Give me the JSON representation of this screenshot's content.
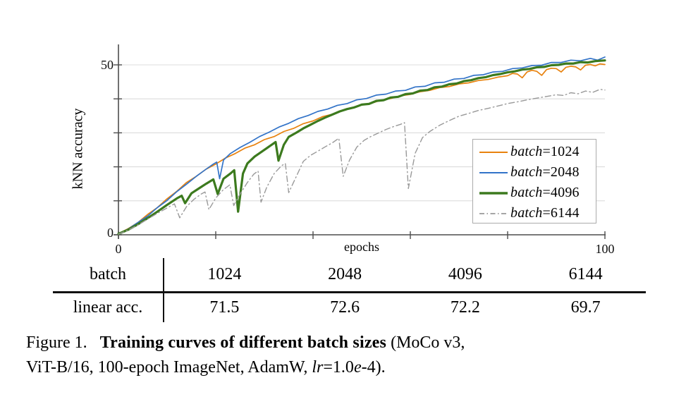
{
  "axis_labels": {
    "y50": "50",
    "y0": "0",
    "x0": "0",
    "x100": "100"
  },
  "chart_data": {
    "type": "line",
    "title": "",
    "xlabel": "epochs",
    "ylabel": "kNN accuracy",
    "xlim": [
      0,
      100
    ],
    "ylim": [
      0,
      55
    ],
    "x_ticks": [
      0,
      20,
      40,
      60,
      80,
      100
    ],
    "x_tick_labels_shown": [
      "0",
      "100"
    ],
    "y_ticks": [
      0,
      10,
      20,
      30,
      40,
      50
    ],
    "y_tick_labels_shown": [
      "0",
      "50"
    ],
    "grid": "horizontal",
    "legend_position": "right-center",
    "colors": {
      "grid": "#dcdcdc",
      "axis": "#4d4d4d"
    },
    "series": [
      {
        "name": "batch=1024",
        "legend_var": "batch",
        "legend_eq": "=",
        "legend_num": "1024",
        "color": "#e8820e",
        "style": "solid",
        "width": 1.7,
        "points": [
          [
            0,
            0.3
          ],
          [
            2,
            1.8
          ],
          [
            4,
            3.6
          ],
          [
            6,
            6.0
          ],
          [
            8,
            8.0
          ],
          [
            10,
            10.6
          ],
          [
            12,
            12.8
          ],
          [
            14,
            15.4
          ],
          [
            16,
            17.2
          ],
          [
            18,
            19.3
          ],
          [
            20,
            20.8
          ],
          [
            22,
            22.6
          ],
          [
            24,
            23.9
          ],
          [
            26,
            25.5
          ],
          [
            28,
            26.5
          ],
          [
            30,
            28.0
          ],
          [
            32,
            28.9
          ],
          [
            34,
            30.4
          ],
          [
            36,
            31.3
          ],
          [
            38,
            32.7
          ],
          [
            40,
            33.5
          ],
          [
            42,
            34.8
          ],
          [
            44,
            35.5
          ],
          [
            46,
            36.6
          ],
          [
            48,
            37.2
          ],
          [
            50,
            38.2
          ],
          [
            52,
            38.7
          ],
          [
            54,
            39.6
          ],
          [
            56,
            40.1
          ],
          [
            58,
            40.9
          ],
          [
            60,
            41.3
          ],
          [
            62,
            42.1
          ],
          [
            64,
            42.5
          ],
          [
            66,
            43.3
          ],
          [
            68,
            43.6
          ],
          [
            70,
            44.4
          ],
          [
            72,
            44.7
          ],
          [
            74,
            45.4
          ],
          [
            76,
            45.7
          ],
          [
            78,
            46.4
          ],
          [
            80,
            46.8
          ],
          [
            81,
            47.5
          ],
          [
            82,
            47.3
          ],
          [
            83,
            46.2
          ],
          [
            84,
            47.9
          ],
          [
            85,
            48.4
          ],
          [
            86,
            48.1
          ],
          [
            87,
            46.9
          ],
          [
            88,
            48.6
          ],
          [
            89,
            49.0
          ],
          [
            90,
            48.9
          ],
          [
            91,
            47.9
          ],
          [
            92,
            49.3
          ],
          [
            93,
            49.6
          ],
          [
            94,
            49.4
          ],
          [
            95,
            48.5
          ],
          [
            96,
            49.9
          ],
          [
            97,
            50.1
          ],
          [
            98,
            49.7
          ],
          [
            99,
            50.3
          ],
          [
            100,
            50.1
          ]
        ]
      },
      {
        "name": "batch=2048",
        "legend_var": "batch",
        "legend_eq": "=",
        "legend_num": "2048",
        "color": "#3273c8",
        "style": "solid",
        "width": 1.7,
        "points": [
          [
            0,
            0.3
          ],
          [
            2,
            1.7
          ],
          [
            4,
            3.6
          ],
          [
            6,
            5.5
          ],
          [
            8,
            8.0
          ],
          [
            10,
            10.1
          ],
          [
            12,
            12.7
          ],
          [
            14,
            14.9
          ],
          [
            16,
            17.2
          ],
          [
            18,
            19.3
          ],
          [
            19.5,
            20.8
          ],
          [
            20.2,
            21.4
          ],
          [
            20.8,
            16.5
          ],
          [
            21.6,
            22.0
          ],
          [
            23,
            23.9
          ],
          [
            25,
            25.7
          ],
          [
            27,
            27.2
          ],
          [
            29,
            28.9
          ],
          [
            31,
            30.2
          ],
          [
            33,
            31.7
          ],
          [
            35,
            32.8
          ],
          [
            37,
            34.2
          ],
          [
            39,
            35.1
          ],
          [
            41,
            36.3
          ],
          [
            43,
            37.0
          ],
          [
            45,
            38.1
          ],
          [
            47,
            38.6
          ],
          [
            49,
            39.7
          ],
          [
            51,
            40.1
          ],
          [
            53,
            41.1
          ],
          [
            55,
            41.4
          ],
          [
            57,
            42.3
          ],
          [
            59,
            42.5
          ],
          [
            61,
            43.5
          ],
          [
            63,
            43.7
          ],
          [
            65,
            44.7
          ],
          [
            67,
            44.9
          ],
          [
            69,
            45.8
          ],
          [
            71,
            46.0
          ],
          [
            73,
            46.9
          ],
          [
            75,
            47.1
          ],
          [
            77,
            47.9
          ],
          [
            79,
            48.1
          ],
          [
            81,
            48.9
          ],
          [
            83,
            49.1
          ],
          [
            85,
            49.8
          ],
          [
            87,
            49.9
          ],
          [
            89,
            50.7
          ],
          [
            91,
            50.7
          ],
          [
            93,
            51.4
          ],
          [
            95,
            51.2
          ],
          [
            97,
            51.9
          ],
          [
            98.5,
            51.4
          ],
          [
            100,
            52.3
          ]
        ]
      },
      {
        "name": "batch=4096",
        "legend_var": "batch",
        "legend_eq": "=",
        "legend_num": "4096",
        "color": "#3c7a1e",
        "style": "solid",
        "width": 3.2,
        "points": [
          [
            0,
            0.3
          ],
          [
            2,
            1.5
          ],
          [
            4,
            3.1
          ],
          [
            6,
            4.9
          ],
          [
            8,
            6.8
          ],
          [
            10,
            8.8
          ],
          [
            12,
            10.7
          ],
          [
            13,
            11.5
          ],
          [
            13.7,
            9.3
          ],
          [
            15,
            12.2
          ],
          [
            16.5,
            13.6
          ],
          [
            18,
            15.0
          ],
          [
            19.5,
            16.3
          ],
          [
            20.4,
            12.0
          ],
          [
            21.6,
            16.5
          ],
          [
            23,
            18.0
          ],
          [
            23.8,
            19.0
          ],
          [
            24.6,
            6.8
          ],
          [
            25.6,
            18.0
          ],
          [
            26.5,
            21.0
          ],
          [
            28,
            23.0
          ],
          [
            29.5,
            24.5
          ],
          [
            31,
            26.0
          ],
          [
            32.3,
            27.3
          ],
          [
            32.9,
            21.8
          ],
          [
            34,
            26.5
          ],
          [
            35,
            28.8
          ],
          [
            36.5,
            30.0
          ],
          [
            38,
            31.3
          ],
          [
            39.5,
            32.4
          ],
          [
            41,
            33.5
          ],
          [
            42.5,
            34.5
          ],
          [
            44,
            35.4
          ],
          [
            45.5,
            36.3
          ],
          [
            47,
            37.0
          ],
          [
            48.5,
            37.5
          ],
          [
            50,
            38.3
          ],
          [
            51.5,
            38.5
          ],
          [
            53,
            39.4
          ],
          [
            54.5,
            39.6
          ],
          [
            56,
            40.4
          ],
          [
            57.5,
            40.6
          ],
          [
            59,
            41.4
          ],
          [
            60.5,
            41.6
          ],
          [
            62,
            42.4
          ],
          [
            63.5,
            42.6
          ],
          [
            65,
            43.4
          ],
          [
            66.5,
            43.6
          ],
          [
            68,
            44.3
          ],
          [
            69.5,
            44.5
          ],
          [
            71,
            45.2
          ],
          [
            72.5,
            45.5
          ],
          [
            74,
            46.1
          ],
          [
            75.5,
            46.4
          ],
          [
            77,
            47.0
          ],
          [
            78.5,
            47.3
          ],
          [
            80,
            47.8
          ],
          [
            81.5,
            48.1
          ],
          [
            83,
            48.6
          ],
          [
            84.5,
            48.8
          ],
          [
            86,
            49.3
          ],
          [
            87.5,
            49.4
          ],
          [
            89,
            49.9
          ],
          [
            90.5,
            50.0
          ],
          [
            92,
            50.4
          ],
          [
            93.5,
            50.4
          ],
          [
            95,
            50.8
          ],
          [
            96.5,
            50.7
          ],
          [
            98,
            51.1
          ],
          [
            100,
            51.3
          ]
        ]
      },
      {
        "name": "batch=6144",
        "legend_var": "batch",
        "legend_eq": "=",
        "legend_num": "6144",
        "color": "#999999",
        "style": "dashdot",
        "width": 1.4,
        "points": [
          [
            0,
            0.2
          ],
          [
            2,
            1.4
          ],
          [
            4,
            2.9
          ],
          [
            6,
            4.6
          ],
          [
            8,
            6.3
          ],
          [
            10,
            7.9
          ],
          [
            11.5,
            9.1
          ],
          [
            12.6,
            5.0
          ],
          [
            14,
            8.3
          ],
          [
            15.5,
            10.4
          ],
          [
            17,
            12.0
          ],
          [
            17.8,
            12.6
          ],
          [
            18.6,
            7.4
          ],
          [
            20,
            10.8
          ],
          [
            21.5,
            13.2
          ],
          [
            22.9,
            14.7
          ],
          [
            23.7,
            8.6
          ],
          [
            25,
            12.0
          ],
          [
            26.5,
            15.4
          ],
          [
            27.8,
            17.8
          ],
          [
            28.7,
            18.8
          ],
          [
            29.3,
            9.6
          ],
          [
            30.5,
            14.0
          ],
          [
            32,
            18.0
          ],
          [
            33.5,
            20.3
          ],
          [
            34.3,
            21.0
          ],
          [
            35,
            12.4
          ],
          [
            36.5,
            17.0
          ],
          [
            38,
            21.6
          ],
          [
            39.5,
            23.4
          ],
          [
            41,
            24.6
          ],
          [
            42.5,
            25.9
          ],
          [
            44,
            27.1
          ],
          [
            45.3,
            28.4
          ],
          [
            46.2,
            17.2
          ],
          [
            47.5,
            22.0
          ],
          [
            49,
            25.8
          ],
          [
            50.5,
            27.8
          ],
          [
            52,
            29.0
          ],
          [
            53.5,
            30.0
          ],
          [
            55,
            31.0
          ],
          [
            56.5,
            31.8
          ],
          [
            58,
            32.5
          ],
          [
            58.8,
            33.0
          ],
          [
            59.6,
            13.6
          ],
          [
            61,
            24.0
          ],
          [
            62.5,
            28.6
          ],
          [
            64,
            30.4
          ],
          [
            66,
            32.2
          ],
          [
            68,
            33.6
          ],
          [
            70,
            34.9
          ],
          [
            72,
            35.7
          ],
          [
            74,
            36.6
          ],
          [
            76,
            37.2
          ],
          [
            78,
            37.9
          ],
          [
            80,
            38.6
          ],
          [
            82,
            39.1
          ],
          [
            84,
            39.7
          ],
          [
            86,
            40.2
          ],
          [
            88,
            40.7
          ],
          [
            90,
            41.2
          ],
          [
            91.5,
            41.0
          ],
          [
            93,
            41.8
          ],
          [
            94.5,
            41.5
          ],
          [
            96,
            42.3
          ],
          [
            97.5,
            41.9
          ],
          [
            99,
            42.8
          ],
          [
            100,
            42.6
          ]
        ]
      }
    ]
  },
  "table": {
    "rows": [
      {
        "cells": [
          "batch",
          "1024",
          "2048",
          "4096",
          "6144"
        ]
      },
      {
        "cells": [
          "linear acc.",
          "71.5",
          "72.6",
          "72.2",
          "69.7"
        ]
      }
    ]
  },
  "caption": {
    "label": "Figure 1.",
    "bold": "Training curves of different batch sizes",
    "tail1": "(MoCo v3,",
    "line2a": "ViT-B/16, 100-epoch ImageNet, AdamW,",
    "lr": "lr",
    "eq": "=1.0",
    "e": "e",
    "tail2": "-4)."
  }
}
